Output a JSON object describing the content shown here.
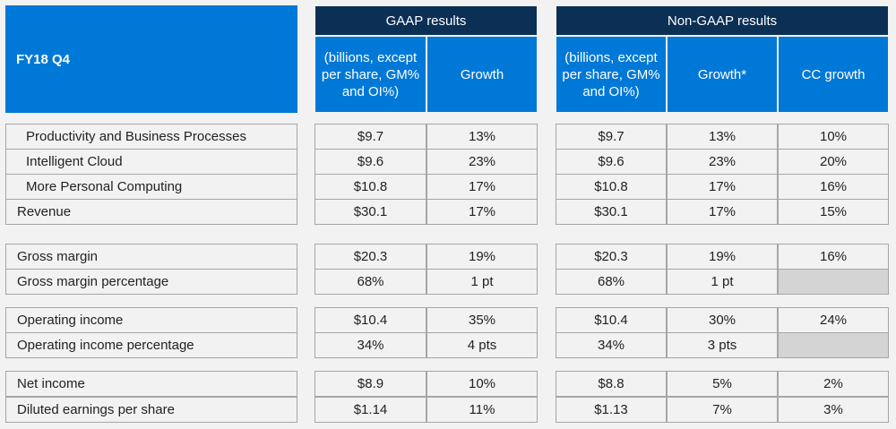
{
  "header": {
    "period": "FY18 Q4",
    "gaap_title": "GAAP results",
    "nongaap_title": "Non-GAAP results",
    "gaap_units": "(billions, except per share, GM% and OI%)",
    "gaap_growth": "Growth",
    "nongaap_units": "(billions, except per share, GM% and OI%)",
    "nongaap_growth": "Growth*",
    "cc_growth": "CC growth"
  },
  "rows": [
    {
      "label": "Productivity and Business Processes",
      "gaap_value": "$9.7",
      "gaap_growth": "13%",
      "ng_value": "$9.7",
      "ng_growth": "13%",
      "cc_growth": "10%"
    },
    {
      "label": "Intelligent Cloud",
      "gaap_value": "$9.6",
      "gaap_growth": "23%",
      "ng_value": "$9.6",
      "ng_growth": "23%",
      "cc_growth": "20%"
    },
    {
      "label": "More Personal Computing",
      "gaap_value": "$10.8",
      "gaap_growth": "17%",
      "ng_value": "$10.8",
      "ng_growth": "17%",
      "cc_growth": "16%"
    },
    {
      "label": "Revenue",
      "gaap_value": "$30.1",
      "gaap_growth": "17%",
      "ng_value": "$30.1",
      "ng_growth": "17%",
      "cc_growth": "15%"
    },
    {
      "label": "Gross margin",
      "gaap_value": "$20.3",
      "gaap_growth": "19%",
      "ng_value": "$20.3",
      "ng_growth": "19%",
      "cc_growth": "16%"
    },
    {
      "label": "Gross margin percentage",
      "gaap_value": "68%",
      "gaap_growth": "1 pt",
      "ng_value": "68%",
      "ng_growth": "1 pt",
      "cc_growth": ""
    },
    {
      "label": "Operating income",
      "gaap_value": "$10.4",
      "gaap_growth": "35%",
      "ng_value": "$10.4",
      "ng_growth": "30%",
      "cc_growth": "24%"
    },
    {
      "label": "Operating income percentage",
      "gaap_value": "34%",
      "gaap_growth": "4 pts",
      "ng_value": "34%",
      "ng_growth": "3 pts",
      "cc_growth": ""
    },
    {
      "label": "Net income",
      "gaap_value": "$8.9",
      "gaap_growth": "10%",
      "ng_value": "$8.8",
      "ng_growth": "5%",
      "cc_growth": "2%"
    },
    {
      "label": "Diluted earnings per share",
      "gaap_value": "$1.14",
      "gaap_growth": "11%",
      "ng_value": "$1.13",
      "ng_growth": "7%",
      "cc_growth": "3%"
    }
  ]
}
